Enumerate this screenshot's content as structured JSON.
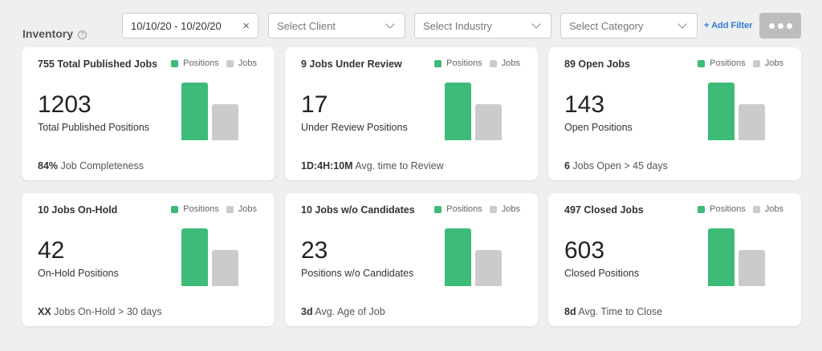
{
  "header": {
    "title": "Inventory",
    "help_icon": "help-icon"
  },
  "filters": {
    "date_range": "10/10/20 - 10/20/20",
    "clear_symbol": "×",
    "client_placeholder": "Select Client",
    "industry_placeholder": "Select Industry",
    "category_placeholder": "Select Category",
    "add_filter": "+ Add Filter",
    "more_icon": "more-dots-icon"
  },
  "colors": {
    "positions": "#3dbb78",
    "jobs": "#cbcbcb",
    "accent": "#2a7bd6"
  },
  "legend": {
    "positions": "Positions",
    "jobs": "Jobs"
  },
  "cards": [
    {
      "title": "755 Total Published Jobs",
      "value": "1203",
      "subtitle": "Total Published Positions",
      "foot_bold": "84%",
      "foot_text": " Job Completeness",
      "bar_positions": 1.0,
      "bar_jobs": 0.63
    },
    {
      "title": "9 Jobs Under Review",
      "value": "17",
      "subtitle": "Under Review Positions",
      "foot_bold": "1D:4H:10M",
      "foot_text": " Avg. time to Review",
      "bar_positions": 1.0,
      "bar_jobs": 0.63
    },
    {
      "title": "89 Open Jobs",
      "value": "143",
      "subtitle": "Open Positions",
      "foot_bold": "6",
      "foot_text": " Jobs Open > 45 days",
      "bar_positions": 1.0,
      "bar_jobs": 0.63
    },
    {
      "title": "10 Jobs On-Hold",
      "value": "42",
      "subtitle": "On-Hold Positions",
      "foot_bold": "XX",
      "foot_text": " Jobs On-Hold > 30 days",
      "bar_positions": 1.0,
      "bar_jobs": 0.63
    },
    {
      "title": "10 Jobs w/o Candidates",
      "value": "23",
      "subtitle": "Positions w/o Candidates",
      "foot_bold": "3d",
      "foot_text": " Avg. Age of Job",
      "bar_positions": 1.0,
      "bar_jobs": 0.63
    },
    {
      "title": "497 Closed Jobs",
      "value": "603",
      "subtitle": "Closed Positions",
      "foot_bold": "8d",
      "foot_text": " Avg. Time to Close",
      "bar_positions": 1.0,
      "bar_jobs": 0.63
    }
  ]
}
